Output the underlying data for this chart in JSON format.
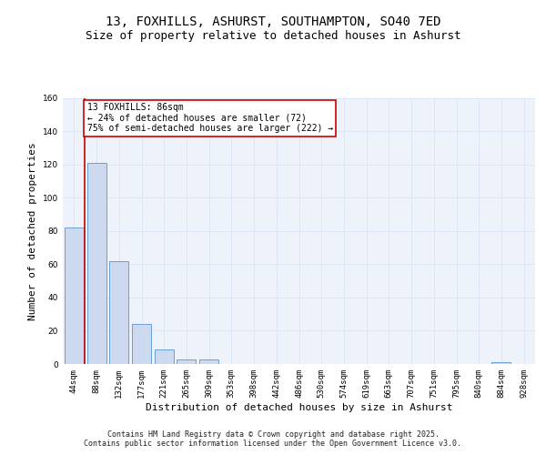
{
  "title_line1": "13, FOXHILLS, ASHURST, SOUTHAMPTON, SO40 7ED",
  "title_line2": "Size of property relative to detached houses in Ashurst",
  "xlabel": "Distribution of detached houses by size in Ashurst",
  "ylabel": "Number of detached properties",
  "bins": [
    "44sqm",
    "88sqm",
    "132sqm",
    "177sqm",
    "221sqm",
    "265sqm",
    "309sqm",
    "353sqm",
    "398sqm",
    "442sqm",
    "486sqm",
    "530sqm",
    "574sqm",
    "619sqm",
    "663sqm",
    "707sqm",
    "751sqm",
    "795sqm",
    "840sqm",
    "884sqm",
    "928sqm"
  ],
  "values": [
    82,
    121,
    62,
    24,
    9,
    3,
    3,
    0,
    0,
    0,
    0,
    0,
    0,
    0,
    0,
    0,
    0,
    0,
    0,
    1,
    0
  ],
  "bar_color": "#ccd9ee",
  "bar_edge_color": "#6b9fd4",
  "grid_color": "#dce6f5",
  "background_color": "#eef2fa",
  "vline_color": "#cc0000",
  "annotation_text": "13 FOXHILLS: 86sqm\n← 24% of detached houses are smaller (72)\n75% of semi-detached houses are larger (222) →",
  "annotation_box_facecolor": "#ffffff",
  "annotation_box_edgecolor": "#cc0000",
  "ylim": [
    0,
    160
  ],
  "yticks": [
    0,
    20,
    40,
    60,
    80,
    100,
    120,
    140,
    160
  ],
  "footer_text": "Contains HM Land Registry data © Crown copyright and database right 2025.\nContains public sector information licensed under the Open Government Licence v3.0.",
  "title_fontsize": 10,
  "subtitle_fontsize": 9,
  "axis_label_fontsize": 8,
  "tick_fontsize": 6.5,
  "annotation_fontsize": 7,
  "footer_fontsize": 6
}
